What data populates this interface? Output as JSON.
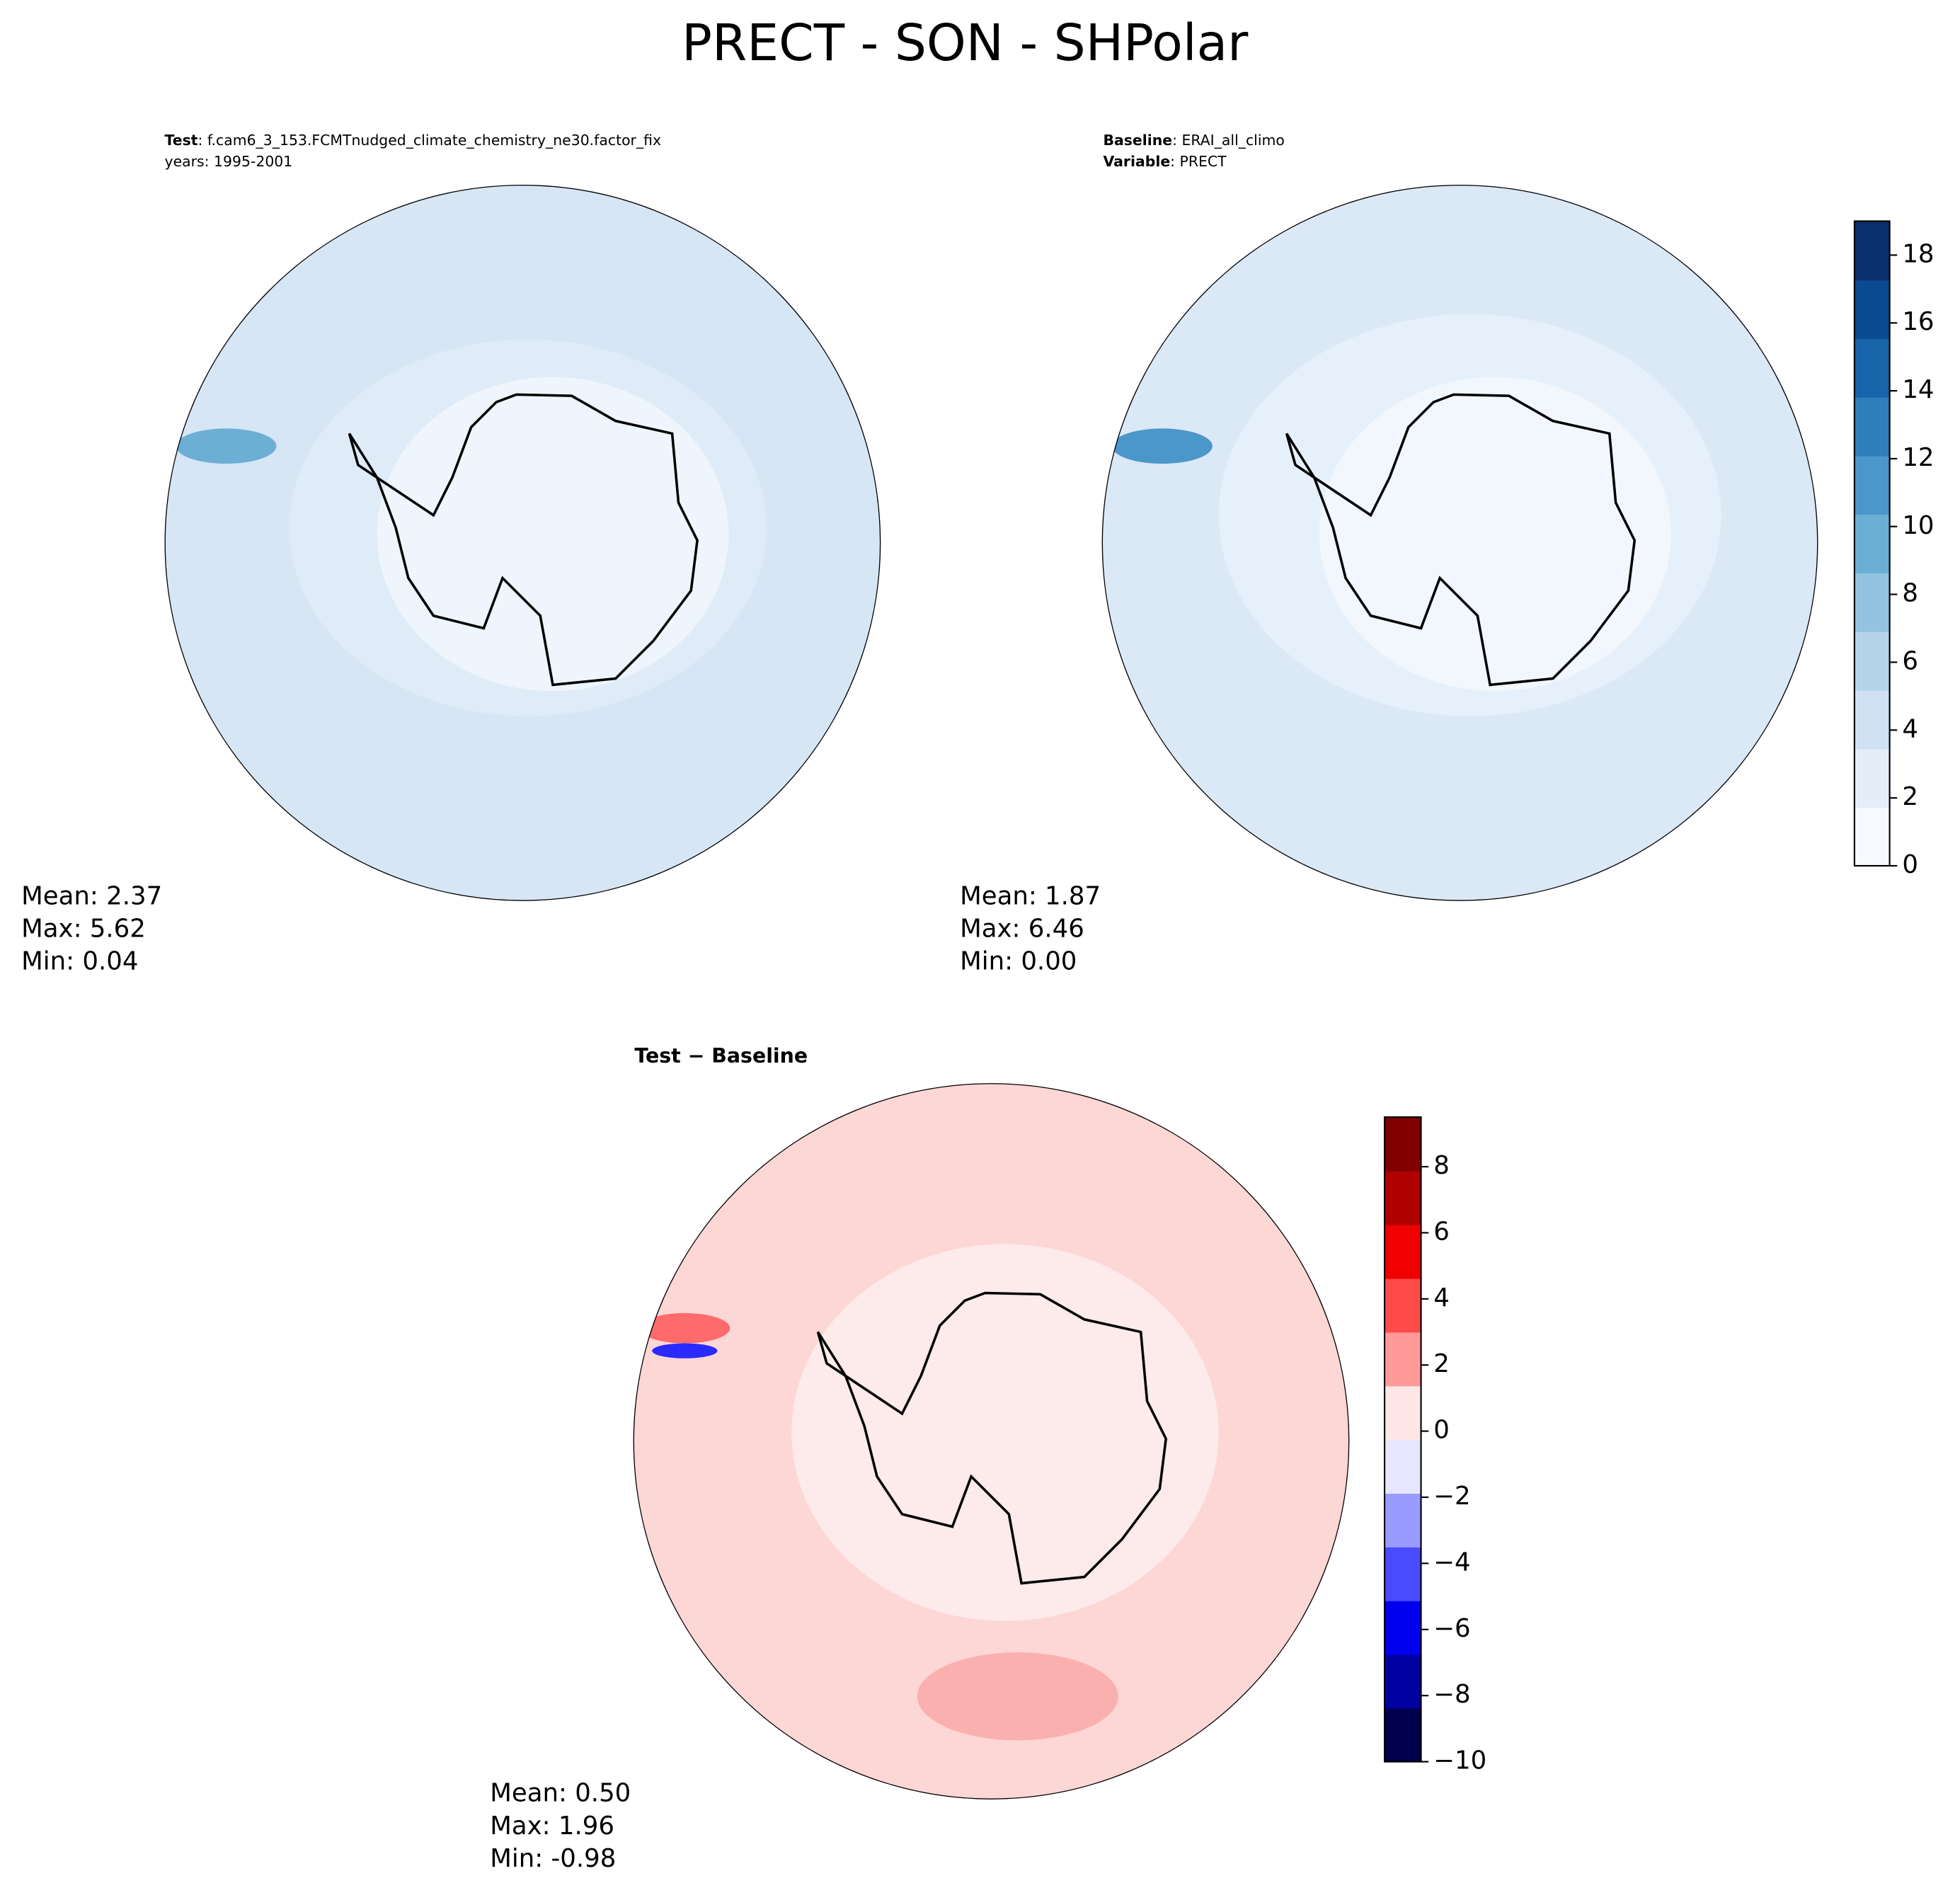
{
  "title": "PRECT - SON - SHPolar",
  "panels": [
    {
      "header": [
        {
          "key": "Test",
          "text": ": f.cam6_3_153.FCMTnudged_climate_chemistry_ne30.factor_fix"
        },
        {
          "text": "years: 1995-2001"
        }
      ],
      "stats": [
        "Mean:  2.37",
        "Max:  5.62",
        "Min:  0.04"
      ]
    },
    {
      "header": [
        {
          "key": "Baseline",
          "text": ": ERAI_all_climo"
        },
        {
          "key": "Variable",
          "text": ": PRECT"
        }
      ],
      "stats": [
        "Mean:  1.87",
        "Max:  6.46",
        "Min:  0.00"
      ]
    },
    {
      "title": "Test − Baseline",
      "stats": [
        "Mean:  0.50",
        "Max:  1.96",
        "Min: -0.98"
      ]
    }
  ],
  "colorbars": [
    {
      "ylim": [
        0,
        19
      ],
      "yticks": [
        0,
        2,
        4,
        6,
        8,
        10,
        12,
        14,
        16,
        18
      ],
      "colors": [
        "#f7fbff",
        "#e3eef9",
        "#cfe1f2",
        "#b5d4e9",
        "#93c3df",
        "#6daed5",
        "#4b97c9",
        "#2f7ebc",
        "#1864aa",
        "#0a4a90",
        "#08306b"
      ]
    },
    {
      "ylim": [
        -10,
        9.5
      ],
      "yticks": [
        {
          "value": -10,
          "label": "−10"
        },
        {
          "value": -8,
          "label": "−8"
        },
        {
          "value": -6,
          "label": "−6"
        },
        {
          "value": -4,
          "label": "−4"
        },
        {
          "value": -2,
          "label": "−2"
        },
        0,
        2,
        4,
        6,
        8
      ],
      "colors": [
        "#00004c",
        "#0000a0",
        "#0000f0",
        "#4a4aff",
        "#9a9aff",
        "#e6e6ff",
        "#ffe6e6",
        "#ff9a9a",
        "#ff4a4a",
        "#f00000",
        "#b00000",
        "#800000"
      ]
    }
  ]
}
